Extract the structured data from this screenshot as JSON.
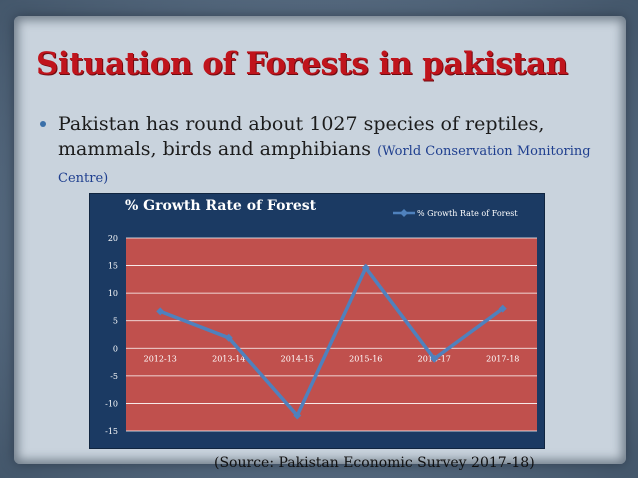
{
  "slide": {
    "title": "Situation of Forests in pakistan",
    "bullet_main": "Pakistan has round about 1027 species of reptiles, mammals, birds and amphibians ",
    "bullet_cite": "(World Conservation Monitoring Centre)",
    "source": "(Source: Pakistan Economic Survey 2017-18)"
  },
  "colors": {
    "title": "#c0141c",
    "chart_background": "#1b3a63",
    "plot_area": "#c0504d",
    "line": "#4f81bd"
  },
  "chart_data": {
    "type": "line",
    "title": "% Growth Rate of Forest",
    "categories": [
      "2012-13",
      "2013-14",
      "2014-15",
      "2015-16",
      "2016-17",
      "2017-18"
    ],
    "series": [
      {
        "name": "% Growth Rate of Forest",
        "values": [
          6.7,
          1.9,
          -12.2,
          14.6,
          -1.9,
          7.2
        ]
      }
    ],
    "ylim": [
      -15,
      20
    ],
    "yticks": [
      20,
      15,
      10,
      5,
      0,
      -5,
      -10,
      -15
    ],
    "legend_position": "top-right",
    "grid": true
  }
}
